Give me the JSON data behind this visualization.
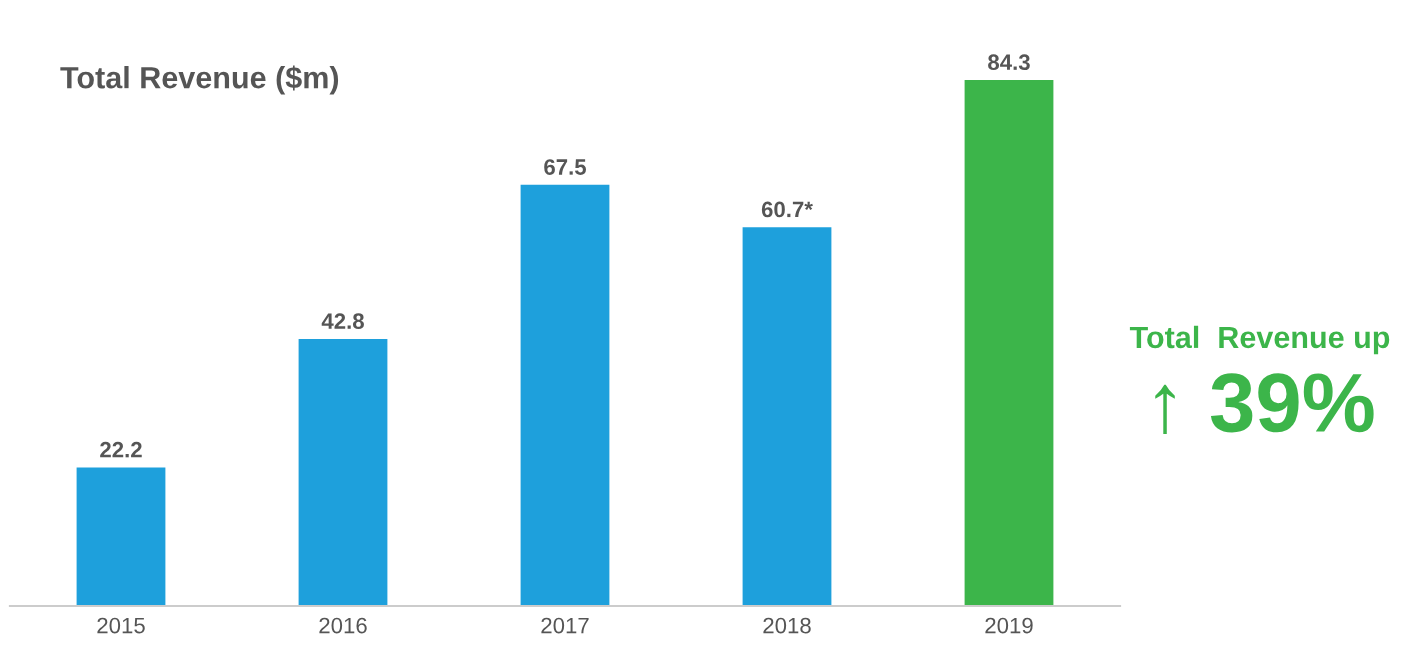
{
  "chart_data": {
    "type": "bar",
    "title": "Total Revenue ($m)",
    "categories": [
      "2015",
      "2016",
      "2017",
      "2018",
      "2019"
    ],
    "values": [
      22.2,
      42.8,
      67.5,
      60.7,
      84.3
    ],
    "value_labels": [
      "22.2",
      "42.8",
      "67.5",
      "60.7*",
      "84.3"
    ],
    "colors": [
      "#1ea0dc",
      "#1ea0dc",
      "#1ea0dc",
      "#1ea0dc",
      "#3cb54a"
    ],
    "annotations": [
      "Total  Revenue up",
      "↑ 39%"
    ],
    "grid": false,
    "legend": false
  }
}
